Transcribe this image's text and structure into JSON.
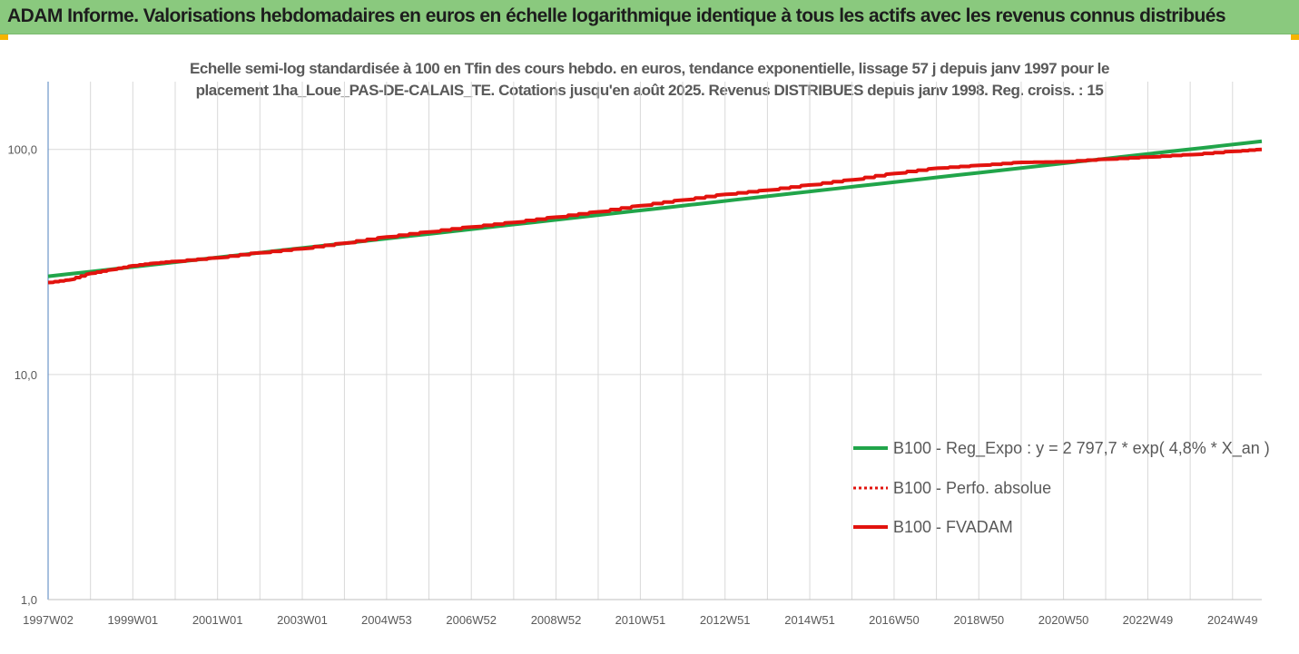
{
  "header": {
    "title": "ADAM Informe. Valorisations hebdomadaires en euros en échelle logarithmique identique à tous les actifs avec les revenus connus distribués"
  },
  "chart_data": {
    "type": "line",
    "title_lines": [
      "Echelle semi-log standardisée à 100 en Tfin des cours hebdo. en euros, tendance exponentielle, lissage 57 j depuis janv 1997 pour le",
      "placement 1ha_Loue_PAS-DE-CALAIS_TE. Cotations jusqu'en août 2025. Revenus DISTRIBUES depuis janv 1998. Reg. croiss. : 15"
    ],
    "y_scale": "log",
    "y_range": [
      1,
      200
    ],
    "y_ticks": [
      {
        "value": 1,
        "label": "1,0"
      },
      {
        "value": 10,
        "label": "10,0"
      },
      {
        "value": 100,
        "label": "100,0"
      }
    ],
    "x_range": [
      1997.0,
      2025.65
    ],
    "x_ticks": [
      {
        "value": 1997.0,
        "label": "1997W02"
      },
      {
        "value": 1999.0,
        "label": "1999W01"
      },
      {
        "value": 2001.0,
        "label": "2001W01"
      },
      {
        "value": 2003.0,
        "label": "2003W01"
      },
      {
        "value": 2004.99,
        "label": "2004W53"
      },
      {
        "value": 2006.99,
        "label": "2006W52"
      },
      {
        "value": 2008.99,
        "label": "2008W52"
      },
      {
        "value": 2010.98,
        "label": "2010W51"
      },
      {
        "value": 2012.98,
        "label": "2012W51"
      },
      {
        "value": 2014.98,
        "label": "2014W51"
      },
      {
        "value": 2016.97,
        "label": "2016W50"
      },
      {
        "value": 2018.97,
        "label": "2018W50"
      },
      {
        "value": 2020.97,
        "label": "2020W50"
      },
      {
        "value": 2022.96,
        "label": "2022W49"
      },
      {
        "value": 2024.96,
        "label": "2024W49"
      }
    ],
    "grid": true,
    "legend_position": "right",
    "series": [
      {
        "name": "B100 - Reg_Expo : y = 2 797,7 * exp( 4,8% *  X_an )",
        "color": "#21a54a",
        "style": "solid",
        "x": [
          1997.0,
          2025.65
        ],
        "y": [
          27.3,
          108.7
        ]
      },
      {
        "name": "B100 - Perfo. absolue",
        "color": "#e2130e",
        "style": "dotted",
        "x": [],
        "y": []
      },
      {
        "name": "B100 - FVADAM",
        "color": "#e2130e",
        "style": "solid",
        "x": [
          1997.0,
          1997.5,
          1998.0,
          1998.5,
          1999.0,
          1999.5,
          2000.0,
          2001.0,
          2002.0,
          2003.0,
          2004.0,
          2005.0,
          2006.0,
          2007.0,
          2008.0,
          2009.0,
          2010.0,
          2011.0,
          2012.0,
          2013.0,
          2014.0,
          2015.0,
          2016.0,
          2017.0,
          2018.0,
          2019.0,
          2020.0,
          2021.0,
          2022.0,
          2023.0,
          2024.0,
          2025.0,
          2025.65
        ],
        "y": [
          25.6,
          26.3,
          28.1,
          29.2,
          30.4,
          31.2,
          31.8,
          33.0,
          34.7,
          36.2,
          38.3,
          40.8,
          43.0,
          45.2,
          47.4,
          50.0,
          52.8,
          56.2,
          59.6,
          63.1,
          65.9,
          69.5,
          73.3,
          78.2,
          82.5,
          84.9,
          87.6,
          88.1,
          90.5,
          92.5,
          94.8,
          98.0,
          100.0
        ]
      }
    ]
  }
}
